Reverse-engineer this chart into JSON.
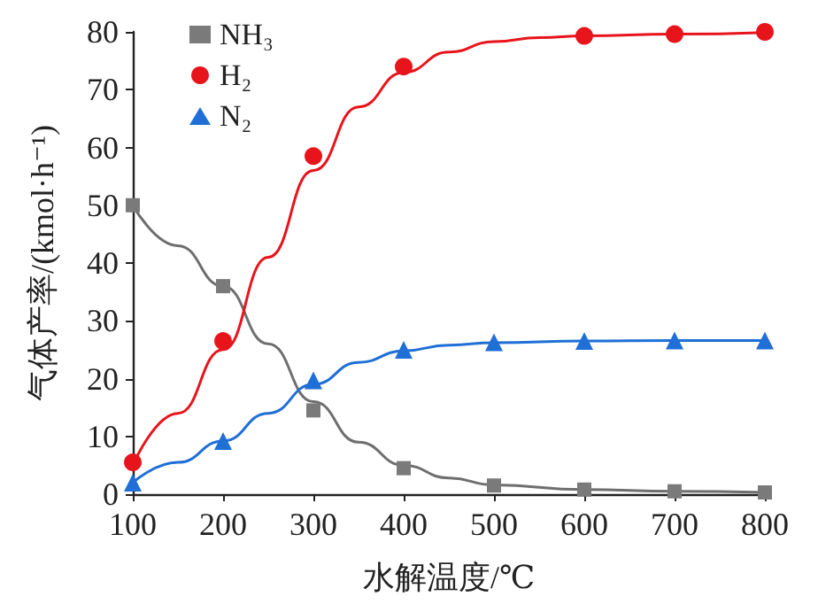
{
  "chart_data": {
    "type": "scatter",
    "xlabel": "水解温度/℃",
    "ylabel": "气体产率/(kmol·h⁻¹)",
    "x": [
      100,
      200,
      300,
      400,
      500,
      600,
      700,
      800
    ],
    "xlim": [
      100,
      800
    ],
    "xticks": [
      100,
      200,
      300,
      400,
      500,
      600,
      700,
      800
    ],
    "ylim": [
      0,
      80
    ],
    "yticks": [
      0,
      10,
      20,
      30,
      40,
      50,
      60,
      70,
      80
    ],
    "grid": false,
    "legend": "top left",
    "series": [
      {
        "type": "line",
        "color": "#6e6e6e",
        "marker": "none",
        "line_style": "solid",
        "x": [
          100,
          150,
          200,
          250,
          300,
          350,
          400,
          450,
          500,
          600,
          700,
          800
        ],
        "values": [
          50,
          43,
          36,
          26,
          16,
          9,
          5,
          2.8,
          1.6,
          0.8,
          0.5,
          0.3
        ]
      },
      {
        "type": "line",
        "color": "#e8141c",
        "marker": "none",
        "line_style": "solid",
        "x": [
          100,
          150,
          200,
          250,
          300,
          350,
          400,
          450,
          500,
          550,
          600,
          700,
          800
        ],
        "values": [
          5,
          14,
          25,
          41,
          56,
          67,
          73,
          76.5,
          78.3,
          79,
          79.3,
          79.6,
          79.9
        ]
      },
      {
        "type": "line",
        "color": "#1f6fd6",
        "marker": "none",
        "line_style": "solid",
        "x": [
          100,
          150,
          200,
          250,
          300,
          350,
          400,
          450,
          500,
          600,
          700,
          800
        ],
        "values": [
          2,
          5.5,
          9.2,
          14,
          19,
          22.8,
          24.8,
          25.8,
          26.2,
          26.5,
          26.6,
          26.6
        ]
      },
      {
        "name": "NH₃",
        "color": "#7a7a7a",
        "marker": "square",
        "values": [
          50,
          36,
          14.5,
          4.5,
          1.5,
          0.8,
          0.5,
          0.3
        ]
      },
      {
        "name": "H₂",
        "color": "#e8141c",
        "marker": "circle",
        "x": [
          100,
          200,
          300,
          400,
          600,
          700,
          800
        ],
        "values": [
          5.5,
          26.5,
          58.5,
          74,
          79.3,
          79.6,
          80
        ]
      },
      {
        "name": "N₂",
        "color": "#1f6fd6",
        "marker": "triangle",
        "values": [
          2,
          9.2,
          19.7,
          25,
          26.3,
          26.5,
          26.6,
          26.6
        ]
      }
    ]
  }
}
